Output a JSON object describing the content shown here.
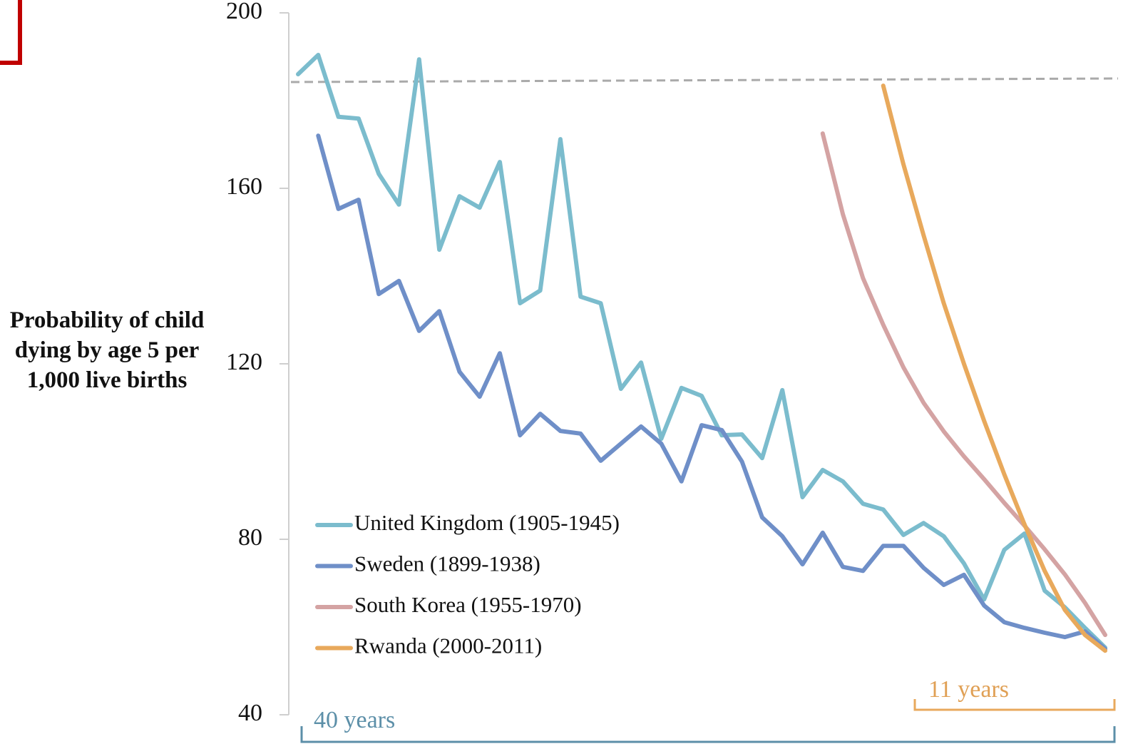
{
  "chart_data": {
    "type": "line",
    "ylabel": "Probability of child dying by age 5 per 1,000 live births",
    "ylim": [
      40,
      200
    ],
    "yticks": [
      40,
      80,
      120,
      160,
      200
    ],
    "legend": "lower left",
    "series": [
      {
        "name": "United Kingdom (1905-1945)",
        "color": "#7bbccd",
        "values": [
          186.0,
          190.4,
          176.3,
          175.9,
          163.3,
          156.3,
          189.4,
          146.0,
          158.2,
          155.6,
          166.0,
          133.8,
          136.7,
          171.2,
          135.3,
          133.8,
          114.3,
          120.3,
          102.9,
          114.5,
          112.7,
          103.7,
          103.9,
          98.5,
          114.0,
          89.6,
          95.8,
          93.2,
          88.1,
          86.8,
          81.0,
          83.7,
          80.7,
          74.5,
          66.3,
          77.6,
          81.3,
          68.3,
          64.5,
          59.8,
          55.3
        ]
      },
      {
        "name": "Sweden (1899-1938)",
        "color": "#6f8fc8",
        "values": [
          172.0,
          155.3,
          157.4,
          135.9,
          138.9,
          127.5,
          132.0,
          118.2,
          112.5,
          122.4,
          103.7,
          108.6,
          104.7,
          104.1,
          97.9,
          101.8,
          105.7,
          101.8,
          93.2,
          106.0,
          104.9,
          97.7,
          85.0,
          80.7,
          74.3,
          81.5,
          73.7,
          72.8,
          78.5,
          78.5,
          73.5,
          69.6,
          71.9,
          64.9,
          61.1,
          59.8,
          58.7,
          57.7,
          59.0,
          55.0
        ]
      },
      {
        "name": "South Korea (1955-1970)",
        "color": "#d4a3a3",
        "values": [
          172.5,
          154.1,
          139.5,
          128.9,
          119.2,
          111.1,
          104.6,
          98.9,
          93.7,
          88.3,
          83.1,
          77.7,
          72.0,
          65.5,
          58.2
        ]
      },
      {
        "name": "Rwanda (2000-2011)",
        "color": "#e8a95c",
        "values": [
          183.4,
          165.5,
          149.3,
          133.8,
          120.0,
          107.0,
          94.8,
          83.4,
          72.8,
          63.9,
          58.2,
          54.6
        ]
      }
    ],
    "annotations": [
      "40 years",
      "11 years"
    ]
  }
}
